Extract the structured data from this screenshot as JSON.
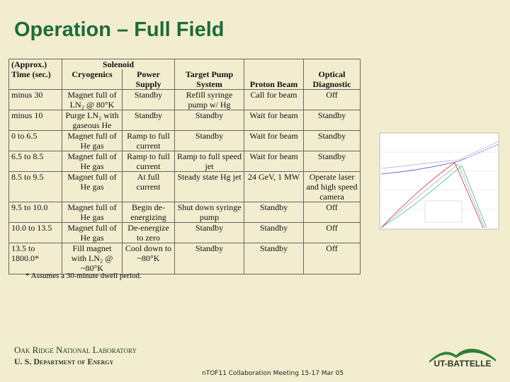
{
  "title": "Operation – Full Field",
  "table": {
    "group": "Solenoid",
    "columns": [
      "(Approx.) Time (sec.)",
      "Cryogenics",
      "Power Supply",
      "Target Pump System",
      "Proton Beam",
      "Optical Diagnostic"
    ],
    "rows": [
      [
        "minus 30",
        "Magnet full of LN₂ @ 80°K",
        "Standby",
        "Refill syringe pump w/ Hg",
        "Call for beam",
        "Off"
      ],
      [
        "minus 10",
        "Purge LN₂ with gaseous He",
        "Standby",
        "Standby",
        "Wait for beam",
        "Standby"
      ],
      [
        "0 to 6.5",
        "Magnet full of He gas",
        "Ramp to full current",
        "Standby",
        "Wait for beam",
        "Standby"
      ],
      [
        "6.5 to 8.5",
        "Magnet full of He gas",
        "Ramp to full current",
        "Ramp to full speed jet",
        "Wait for beam",
        "Standby"
      ],
      [
        "8.5 to 9.5",
        "Magnet full of He gas",
        "At full current",
        "Steady state Hg jet",
        "24 GeV, 1 MW",
        "Operate laser and high speed camera"
      ],
      [
        "9.5 to 10.0",
        "Magnet full of He gas",
        "Begin de-energizing",
        "Shut down syringe pump",
        "Standby",
        "Off"
      ],
      [
        "10.0 to 13.5",
        "Magnet full of He gas",
        "De-energize to zero",
        "Standby",
        "Standby",
        "Off"
      ],
      [
        "13.5 to 1800.0*",
        "Fill magnet with LN₂ @ ~80°K",
        "Cool down to ~80°K",
        "Standby",
        "Standby",
        "Off"
      ]
    ],
    "footnote": "* Assumes a 30-minute dwell period."
  },
  "footer": {
    "lab": "Oak Ridge National Laboratory",
    "department": "U. S. Department of Energy",
    "meeting": "nTOF11 Collaboration Meeting 15-17 Mar 05",
    "logo": "UT-BATTELLE"
  }
}
